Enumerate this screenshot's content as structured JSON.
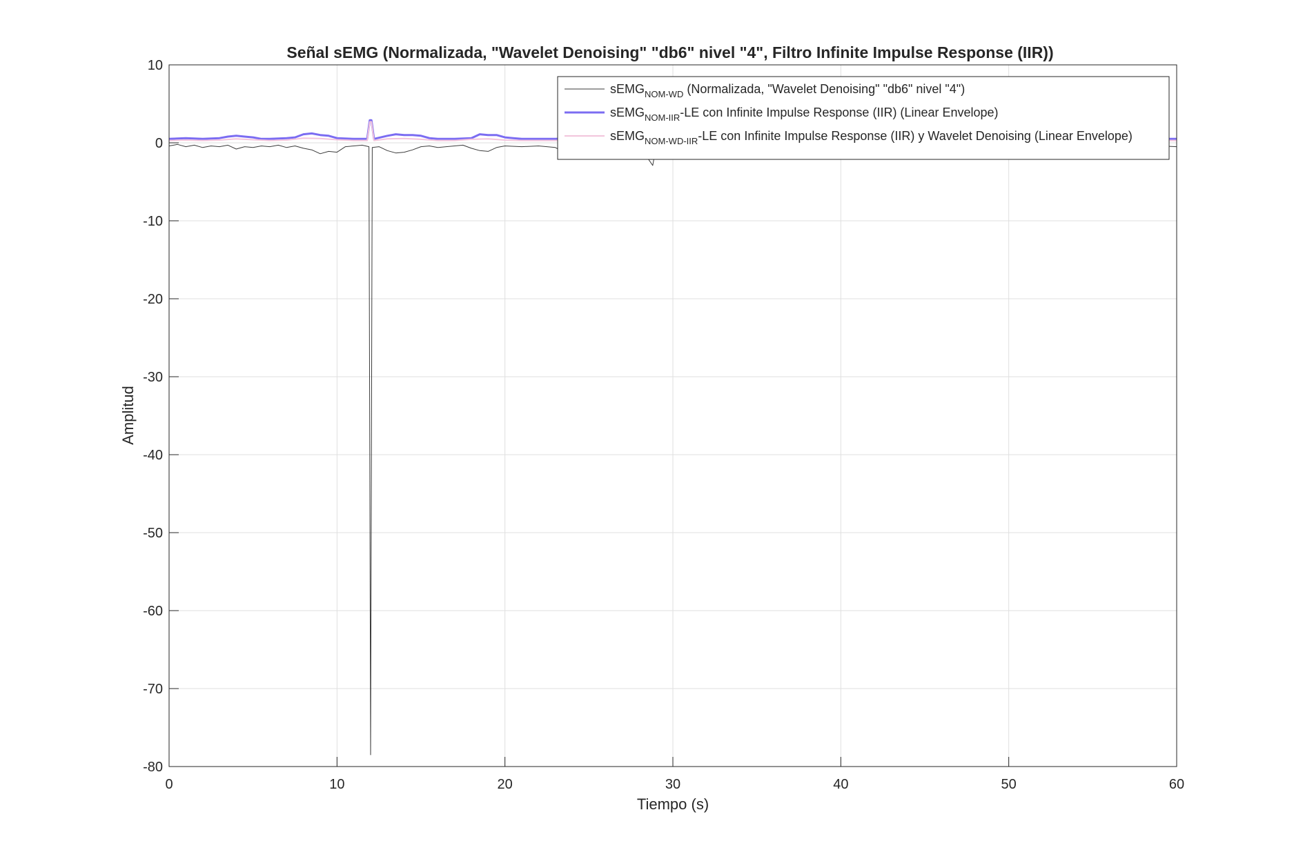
{
  "chart_data": {
    "type": "line",
    "title": "Señal sEMG (Normalizada, \"Wavelet Denoising\" \"db6\" nivel \"4\", Filtro Infinite Impulse Response (IIR))",
    "xlabel": "Tiempo (s)",
    "ylabel": "Amplitud",
    "xlim": [
      0,
      60
    ],
    "ylim": [
      -80,
      10
    ],
    "xticks": [
      "0",
      "10",
      "20",
      "30",
      "40",
      "50",
      "60"
    ],
    "yticks": [
      "10",
      "0",
      "-10",
      "-20",
      "-30",
      "-40",
      "-50",
      "-60",
      "-70",
      "-80"
    ],
    "grid": true,
    "legend_position": "top-right",
    "series": [
      {
        "name_main": "sEMG",
        "name_sub": "NOM-WD",
        "name_rest": " (Normalizada, \"Wavelet Denoising\" \"db6\" nivel \"4\")",
        "color": "#3a3a3a",
        "line_width": 1,
        "x": [
          0,
          0.5,
          1,
          1.5,
          2,
          2.5,
          3,
          3.5,
          4,
          4.5,
          5,
          5.5,
          6,
          6.5,
          7,
          7.5,
          8,
          8.5,
          9,
          9.5,
          10,
          10.5,
          11,
          11.5,
          11.9,
          12.0,
          12.1,
          12.5,
          13,
          13.5,
          14,
          14.5,
          15,
          15.5,
          16,
          16.5,
          17,
          17.5,
          18,
          18.5,
          19,
          19.5,
          20,
          21,
          22,
          23,
          23.5,
          24,
          24.5,
          25,
          26,
          27,
          28,
          28.8,
          29,
          30,
          31,
          32,
          33,
          34,
          35,
          36,
          37,
          38,
          39,
          39.7,
          40,
          41,
          42,
          43,
          43.5,
          44,
          45,
          46,
          47,
          48,
          48.8,
          49.3,
          50,
          51,
          52,
          53,
          54,
          55,
          56,
          57,
          58,
          59,
          60
        ],
        "y": [
          -0.4,
          -0.2,
          -0.5,
          -0.3,
          -0.6,
          -0.4,
          -0.5,
          -0.3,
          -0.8,
          -0.5,
          -0.6,
          -0.4,
          -0.5,
          -0.3,
          -0.6,
          -0.4,
          -0.7,
          -0.9,
          -1.4,
          -1.1,
          -1.2,
          -0.5,
          -0.4,
          -0.3,
          -0.5,
          -78.5,
          -0.6,
          -0.5,
          -1.0,
          -1.3,
          -1.2,
          -0.9,
          -0.5,
          -0.4,
          -0.6,
          -0.5,
          -0.4,
          -0.3,
          -0.7,
          -1.0,
          -1.1,
          -0.6,
          -0.4,
          -0.5,
          -0.4,
          -0.6,
          -1.2,
          -2.1,
          -1.0,
          -1.3,
          -0.5,
          -0.6,
          -0.4,
          -2.9,
          -0.5,
          -0.4,
          -0.6,
          -0.5,
          -0.9,
          -0.6,
          -1.0,
          -0.5,
          -0.6,
          -0.5,
          -0.7,
          -0.9,
          -1.0,
          -0.5,
          -0.6,
          -0.4,
          -2.0,
          -0.6,
          -1.1,
          -0.5,
          -0.6,
          -0.5,
          -1.4,
          -1.5,
          -0.6,
          -0.5,
          -0.6,
          -0.5,
          -0.4,
          -0.6,
          -0.5,
          -0.4,
          -0.5,
          -0.4,
          -0.5
        ]
      },
      {
        "name_main": "sEMG",
        "name_sub": "NOM-IIR",
        "name_rest": "-LE con Infinite Impulse Response (IIR) (Linear Envelope)",
        "color": "#7b6cf2",
        "line_width": 3,
        "x": [
          0,
          1,
          2,
          3,
          3.5,
          4,
          4.5,
          5,
          5.5,
          6,
          7,
          7.5,
          8,
          8.5,
          9,
          9.5,
          10,
          11,
          11.8,
          11.95,
          12.05,
          12.2,
          13,
          13.5,
          14,
          14.5,
          15,
          15.5,
          16,
          17,
          18,
          18.5,
          19,
          19.5,
          20,
          20.5,
          21,
          22,
          23,
          24,
          25,
          26,
          27,
          28,
          29,
          30,
          32,
          34,
          36,
          38,
          40,
          42,
          44,
          46,
          48,
          50,
          52,
          54,
          56,
          58,
          60
        ],
        "y": [
          0.5,
          0.6,
          0.5,
          0.6,
          0.8,
          0.9,
          0.8,
          0.7,
          0.5,
          0.5,
          0.6,
          0.7,
          1.1,
          1.2,
          1.0,
          0.9,
          0.6,
          0.5,
          0.5,
          2.9,
          2.9,
          0.5,
          0.9,
          1.1,
          1.0,
          1.0,
          0.9,
          0.6,
          0.5,
          0.5,
          0.6,
          1.1,
          1.0,
          1.0,
          0.7,
          0.6,
          0.5,
          0.5,
          0.5,
          0.6,
          0.5,
          0.5,
          0.6,
          0.5,
          0.6,
          0.5,
          0.5,
          0.6,
          0.5,
          0.5,
          0.6,
          0.5,
          0.5,
          0.6,
          0.5,
          0.5,
          0.6,
          0.5,
          0.5,
          0.5,
          0.5
        ]
      },
      {
        "name_main": "sEMG",
        "name_sub": "NOM-WD-IIR",
        "name_rest": "-LE con Infinite Impulse Response (IIR) y Wavelet Denoising (Linear Envelope)",
        "color": "#f2c4dc",
        "line_width": 2,
        "x": [
          0,
          1,
          2,
          3,
          4,
          5,
          6,
          7,
          8,
          9,
          10,
          11,
          11.8,
          11.95,
          12.05,
          12.2,
          13,
          14,
          15,
          16,
          17,
          18,
          19,
          20,
          21,
          22,
          23,
          24,
          26,
          28,
          30,
          32,
          34,
          36,
          38,
          40,
          42,
          44,
          46,
          48,
          50,
          52,
          54,
          56,
          58,
          60
        ],
        "y": [
          0.3,
          0.35,
          0.3,
          0.35,
          0.5,
          0.4,
          0.3,
          0.35,
          0.6,
          0.55,
          0.4,
          0.3,
          0.3,
          2.7,
          2.7,
          0.3,
          0.5,
          0.55,
          0.45,
          0.3,
          0.3,
          0.45,
          0.5,
          0.35,
          0.3,
          0.3,
          0.3,
          0.35,
          0.3,
          0.3,
          0.35,
          0.3,
          0.3,
          0.35,
          0.3,
          0.3,
          0.35,
          0.3,
          0.3,
          0.35,
          0.3,
          0.3,
          0.35,
          0.3,
          0.3,
          0.3
        ]
      }
    ]
  }
}
